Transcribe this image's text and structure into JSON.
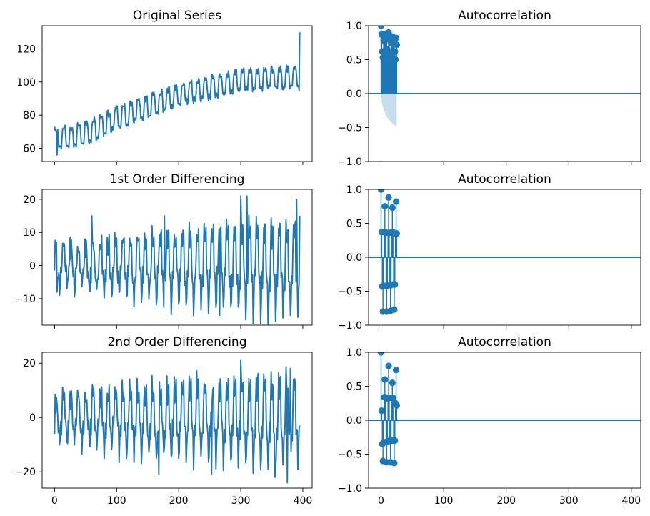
{
  "chart_data": [
    {
      "type": "line",
      "title": "Original Series",
      "xlim": [
        -20,
        415
      ],
      "ylim": [
        52,
        134
      ],
      "xticks": [
        0,
        100,
        200,
        300,
        400
      ],
      "show_xtick_labels": false,
      "yticks": [
        60,
        80,
        100,
        120
      ],
      "ytick_labels": [
        "60",
        "80",
        "100",
        "120"
      ],
      "color": "#1f77b4",
      "series": [
        {
          "x_start": 0,
          "x_end": 395,
          "period": 12,
          "seasonal_amplitude": 7,
          "noise": 1.5,
          "trend": [
            {
              "x": 0,
              "y": 66
            },
            {
              "x": 50,
              "y": 69
            },
            {
              "x": 100,
              "y": 78
            },
            {
              "x": 200,
              "y": 92
            },
            {
              "x": 300,
              "y": 101
            },
            {
              "x": 395,
              "y": 103
            }
          ],
          "endpoints": [
            {
              "x": 0,
              "y": 73
            },
            {
              "x": 4,
              "y": 56
            },
            {
              "x": 394,
              "y": 95
            },
            {
              "x": 395,
              "y": 130
            }
          ]
        }
      ]
    },
    {
      "type": "stem",
      "title": "Autocorrelation",
      "xlim": [
        -20,
        415
      ],
      "ylim": [
        -1.0,
        1.0
      ],
      "xticks": [
        0,
        100,
        200,
        300,
        400
      ],
      "show_xtick_labels": false,
      "yticks": [
        -1.0,
        -0.5,
        0.0,
        0.5,
        1.0
      ],
      "ytick_labels": [
        "−1.0",
        "−0.5",
        "0.0",
        "0.5",
        "1.0"
      ],
      "color": "#1f77b4",
      "lags": [
        0,
        1,
        2,
        3,
        4,
        5,
        6,
        7,
        8,
        9,
        10,
        11,
        12,
        13,
        14,
        15,
        16,
        17,
        18,
        19,
        20,
        21,
        22,
        23,
        24,
        25
      ],
      "values": [
        1.0,
        0.87,
        0.62,
        0.53,
        0.78,
        0.85,
        0.88,
        0.85,
        0.88,
        0.8,
        0.65,
        0.55,
        0.9,
        0.82,
        0.6,
        0.5,
        0.75,
        0.82,
        0.84,
        0.8,
        0.82,
        0.75,
        0.62,
        0.5,
        0.82,
        0.72
      ],
      "confidence": [
        0.0,
        -0.12,
        -0.16,
        -0.2,
        -0.23,
        -0.26,
        -0.28,
        -0.3,
        -0.32,
        -0.34,
        -0.35,
        -0.37,
        -0.38,
        -0.39,
        -0.4,
        -0.41,
        -0.42,
        -0.43,
        -0.44,
        -0.45,
        -0.45,
        -0.46,
        -0.47,
        -0.47,
        -0.48,
        -0.49
      ]
    },
    {
      "type": "line",
      "title": "1st Order Differencing",
      "xlim": [
        -20,
        415
      ],
      "ylim": [
        -18,
        23
      ],
      "xticks": [
        0,
        100,
        200,
        300,
        400
      ],
      "show_xtick_labels": false,
      "yticks": [
        -10,
        0,
        10,
        20
      ],
      "ytick_labels": [
        "−10",
        "0",
        "10",
        "20"
      ],
      "color": "#1f77b4",
      "series": [
        {
          "x_start": 0,
          "x_end": 395,
          "period": 12,
          "envelope": [
            {
              "x": 0,
              "y": 6
            },
            {
              "x": 100,
              "y": 9
            },
            {
              "x": 200,
              "y": 11
            },
            {
              "x": 300,
              "y": 13
            },
            {
              "x": 395,
              "y": 14
            }
          ],
          "noise": 2.5,
          "spikes": [
            {
              "x": 60,
              "y": 15
            },
            {
              "x": 177,
              "y": 15
            },
            {
              "x": 266,
              "y": -15
            },
            {
              "x": 300,
              "y": 21
            },
            {
              "x": 310,
              "y": 21
            },
            {
              "x": 380,
              "y": -15
            },
            {
              "x": 390,
              "y": 20
            }
          ],
          "endpoints": [
            {
              "x": 0,
              "y": -1.5
            },
            {
              "x": 4,
              "y": -8
            },
            {
              "x": 395,
              "y": 15
            }
          ]
        }
      ]
    },
    {
      "type": "stem",
      "title": "Autocorrelation",
      "xlim": [
        -20,
        415
      ],
      "ylim": [
        -1.0,
        1.0
      ],
      "xticks": [
        0,
        100,
        200,
        300,
        400
      ],
      "show_xtick_labels": false,
      "yticks": [
        -1.0,
        -0.5,
        0.0,
        0.5,
        1.0
      ],
      "ytick_labels": [
        "−1.0",
        "−0.5",
        "0.0",
        "0.5",
        "1.0"
      ],
      "color": "#1f77b4",
      "lags": [
        0,
        1,
        2,
        3,
        4,
        5,
        6,
        7,
        8,
        9,
        10,
        11,
        12,
        13,
        14,
        15,
        16,
        17,
        18,
        19,
        20,
        21,
        22,
        23,
        24,
        25
      ],
      "values": [
        1.0,
        0.37,
        -0.43,
        -0.8,
        -0.42,
        0.37,
        0.75,
        0.37,
        -0.42,
        -0.8,
        -0.42,
        0.36,
        0.88,
        0.36,
        -0.41,
        -0.79,
        -0.41,
        0.37,
        0.73,
        0.37,
        -0.4,
        -0.77,
        -0.4,
        0.35,
        0.82,
        0.35
      ]
    },
    {
      "type": "line",
      "title": "2nd Order Differencing",
      "xlim": [
        -20,
        415
      ],
      "ylim": [
        -26,
        24
      ],
      "xticks": [
        0,
        100,
        200,
        300,
        400
      ],
      "xtick_labels": [
        "0",
        "100",
        "200",
        "300",
        "400"
      ],
      "yticks": [
        -20,
        0,
        20
      ],
      "ytick_labels": [
        "−20",
        "0",
        "20"
      ],
      "color": "#1f77b4",
      "series": [
        {
          "x_start": 0,
          "x_end": 395,
          "period": 12,
          "envelope": [
            {
              "x": 0,
              "y": 8
            },
            {
              "x": 100,
              "y": 12
            },
            {
              "x": 200,
              "y": 14
            },
            {
              "x": 300,
              "y": 16
            },
            {
              "x": 395,
              "y": 17
            }
          ],
          "noise": 3,
          "spikes": [
            {
              "x": 168,
              "y": -21
            },
            {
              "x": 253,
              "y": -21
            },
            {
              "x": 300,
              "y": 21
            },
            {
              "x": 355,
              "y": -22
            },
            {
              "x": 375,
              "y": -24
            },
            {
              "x": 380,
              "y": 18
            }
          ],
          "endpoints": [
            {
              "x": 0,
              "y": -6
            },
            {
              "x": 4,
              "y": 5
            },
            {
              "x": 395,
              "y": -3
            }
          ]
        }
      ]
    },
    {
      "type": "stem",
      "title": "Autocorrelation",
      "xlim": [
        -20,
        415
      ],
      "ylim": [
        -1.0,
        1.0
      ],
      "xticks": [
        0,
        100,
        200,
        300,
        400
      ],
      "xtick_labels": [
        "0",
        "100",
        "200",
        "300",
        "400"
      ],
      "yticks": [
        -1.0,
        -0.5,
        0.0,
        0.5,
        1.0
      ],
      "ytick_labels": [
        "−1.0",
        "−0.5",
        "0.0",
        "0.5",
        "1.0"
      ],
      "color": "#1f77b4",
      "lags": [
        0,
        1,
        2,
        3,
        4,
        5,
        6,
        7,
        8,
        9,
        10,
        11,
        12,
        13,
        14,
        15,
        16,
        17,
        18,
        19,
        20,
        21,
        22,
        23,
        24,
        25
      ],
      "values": [
        1.0,
        0.14,
        -0.35,
        -0.6,
        -0.33,
        0.34,
        0.6,
        0.34,
        -0.32,
        -0.62,
        -0.32,
        0.32,
        0.8,
        0.33,
        -0.3,
        -0.62,
        -0.3,
        0.33,
        0.55,
        0.33,
        -0.3,
        -0.63,
        -0.3,
        0.25,
        0.74,
        0.22
      ]
    }
  ]
}
